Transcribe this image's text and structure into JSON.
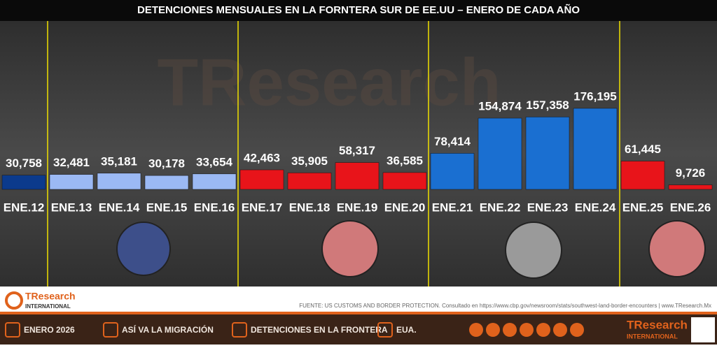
{
  "chart_data": {
    "type": "bar",
    "title": "DETENCIONES MENSUALES EN LA FORNTERA SUR DE EE.UU – ENERO DE CADA AÑO",
    "categories": [
      "ENE.12",
      "ENE.13",
      "ENE.14",
      "ENE.15",
      "ENE.16",
      "ENE.17",
      "ENE.18",
      "ENE.19",
      "ENE.20",
      "ENE.21",
      "ENE.22",
      "ENE.23",
      "ENE.24",
      "ENE.25",
      "ENE.26"
    ],
    "values": [
      30758,
      32481,
      35181,
      30178,
      33654,
      42463,
      35905,
      58317,
      36585,
      78414,
      154874,
      157358,
      176195,
      61445,
      9726
    ],
    "value_labels": [
      "30,758",
      "32,481",
      "35,181",
      "30,178",
      "33,654",
      "42,463",
      "35,905",
      "58,317",
      "36,585",
      "78,414",
      "154,874",
      "157,358",
      "176,195",
      "61,445",
      "9,726"
    ],
    "colors": [
      "#0b3a8c",
      "#9bb9f4",
      "#9bb9f4",
      "#9bb9f4",
      "#9bb9f4",
      "#e8141a",
      "#e8141a",
      "#e8141a",
      "#e8141a",
      "#1a6fd1",
      "#1a6fd1",
      "#1a6fd1",
      "#1a6fd1",
      "#e8141a",
      "#e8141a"
    ],
    "watermark": "TResearch"
  },
  "footer": {
    "logo": "TResearch",
    "logo_sub": "INTERNATIONAL",
    "source": "FUENTE: US CUSTOMS AND BORDER PROTECTION. Consultado en https://www.cbp.gov/newsroom/stats/southwest-land-border-encounters | www.TResearch.Mx"
  },
  "bottom_bar": {
    "items": [
      "ENERO 2026",
      "ASÍ VA LA MIGRACIÓN",
      "DETENCIONES EN LA FRONTERA",
      "EUA."
    ],
    "logo": "TResearch",
    "logo_sub": "INTERNATIONAL"
  }
}
